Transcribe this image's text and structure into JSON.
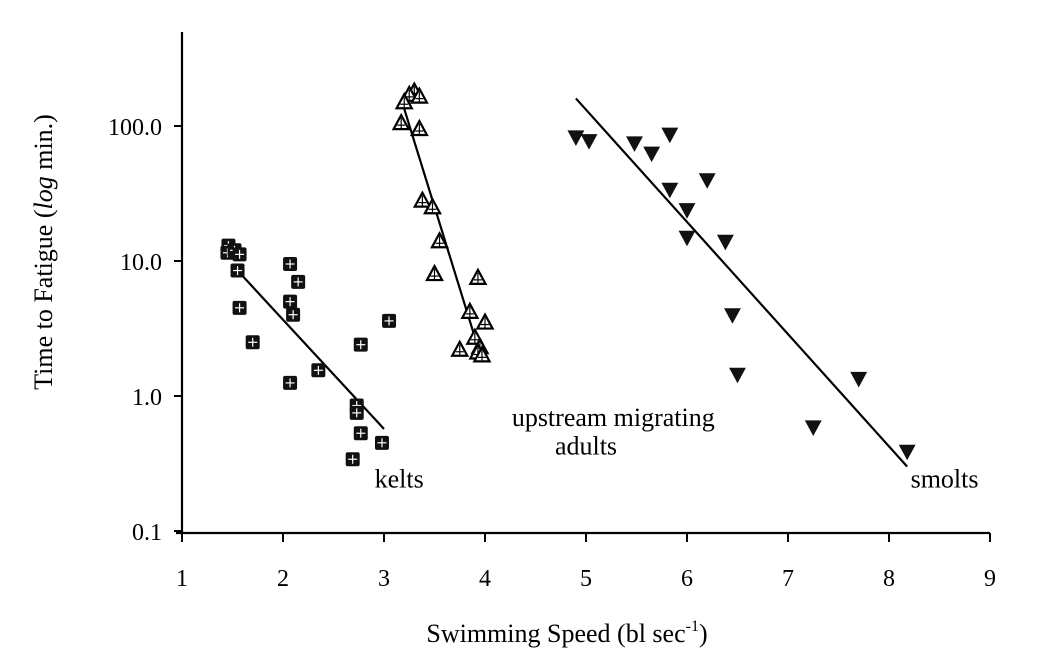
{
  "chart_data": {
    "type": "scatter",
    "title": "",
    "xlabel": "Swimming Speed (bl sec-1)",
    "xlabel_parts": {
      "main": "Swimming Speed (bl sec",
      "sup": "-1",
      "close": ")"
    },
    "ylabel": "Time to Fatigue (log min.)",
    "ylabel_parts": {
      "pre": "Time to Fatigue (",
      "italic": "log",
      "post": " min.)"
    },
    "xlim": [
      1,
      9
    ],
    "ylim": [
      0.1,
      1000
    ],
    "yscale": "log",
    "xticks": [
      {
        "value": 1,
        "label": "1"
      },
      {
        "value": 2,
        "label": "2"
      },
      {
        "value": 3,
        "label": "3"
      },
      {
        "value": 4,
        "label": "4"
      },
      {
        "value": 5,
        "label": "5"
      },
      {
        "value": 6,
        "label": "6"
      },
      {
        "value": 7,
        "label": "7"
      },
      {
        "value": 8,
        "label": "8"
      },
      {
        "value": 9,
        "label": "9"
      }
    ],
    "yticks": [
      {
        "value": 0.1,
        "label": "0.1"
      },
      {
        "value": 1,
        "label": "1.0"
      },
      {
        "value": 10,
        "label": "10.0"
      },
      {
        "value": 100,
        "label": "100.0"
      }
    ],
    "grid": false,
    "legend": "none",
    "series": [
      {
        "name": "kelts",
        "marker": "square",
        "color": "#111111",
        "points": [
          [
            1.46,
            13.0
          ],
          [
            1.45,
            11.5
          ],
          [
            1.52,
            12.0
          ],
          [
            1.57,
            11.2
          ],
          [
            1.55,
            8.5
          ],
          [
            1.57,
            4.5
          ],
          [
            1.7,
            2.5
          ],
          [
            2.07,
            9.5
          ],
          [
            2.07,
            5.0
          ],
          [
            2.1,
            4.0
          ],
          [
            2.15,
            7.0
          ],
          [
            2.07,
            1.25
          ],
          [
            2.35,
            1.55
          ],
          [
            2.77,
            2.4
          ],
          [
            2.73,
            0.85
          ],
          [
            2.73,
            0.75
          ],
          [
            2.77,
            0.53
          ],
          [
            2.98,
            0.45
          ],
          [
            2.69,
            0.34
          ],
          [
            3.05,
            3.6
          ]
        ],
        "fit": [
          [
            1.55,
            8.5
          ],
          [
            3.0,
            0.57
          ]
        ]
      },
      {
        "name": "upstream migrating adults",
        "marker": "triangle-open",
        "color": "#000000",
        "points": [
          [
            3.3,
            180.0
          ],
          [
            3.25,
            170.0
          ],
          [
            3.35,
            165.0
          ],
          [
            3.2,
            150.0
          ],
          [
            3.17,
            105.0
          ],
          [
            3.35,
            95.0
          ],
          [
            3.38,
            28.0
          ],
          [
            3.48,
            25.0
          ],
          [
            3.55,
            14.0
          ],
          [
            3.5,
            8.0
          ],
          [
            3.93,
            7.5
          ],
          [
            3.85,
            4.2
          ],
          [
            4.0,
            3.5
          ],
          [
            3.9,
            2.7
          ],
          [
            3.75,
            2.2
          ],
          [
            3.95,
            2.3
          ],
          [
            3.93,
            2.1
          ],
          [
            3.97,
            2.0
          ]
        ],
        "fit": [
          [
            3.18,
            150.0
          ],
          [
            3.93,
            2.3
          ]
        ]
      },
      {
        "name": "smolts",
        "marker": "triangle-down",
        "color": "#111111",
        "points": [
          [
            4.9,
            83.0
          ],
          [
            5.03,
            78.0
          ],
          [
            5.48,
            75.0
          ],
          [
            5.65,
            63.0
          ],
          [
            5.83,
            87.0
          ],
          [
            5.83,
            34.0
          ],
          [
            6.0,
            24.0
          ],
          [
            6.2,
            40.0
          ],
          [
            6.0,
            15.0
          ],
          [
            6.38,
            14.0
          ],
          [
            6.45,
            4.0
          ],
          [
            6.5,
            1.45
          ],
          [
            7.7,
            1.35
          ],
          [
            7.25,
            0.59
          ],
          [
            8.18,
            0.39
          ]
        ],
        "fit": [
          [
            4.9,
            160.0
          ],
          [
            8.18,
            0.3
          ]
        ]
      }
    ],
    "annotations": [
      {
        "text": "upstream migrating",
        "x": 5.27,
        "y": 0.6
      },
      {
        "text": "adults",
        "x": 5.0,
        "y": 0.37
      },
      {
        "text": "kelts",
        "x": 3.15,
        "y": 0.21
      },
      {
        "text": "smolts",
        "x": 8.55,
        "y": 0.21
      }
    ]
  }
}
